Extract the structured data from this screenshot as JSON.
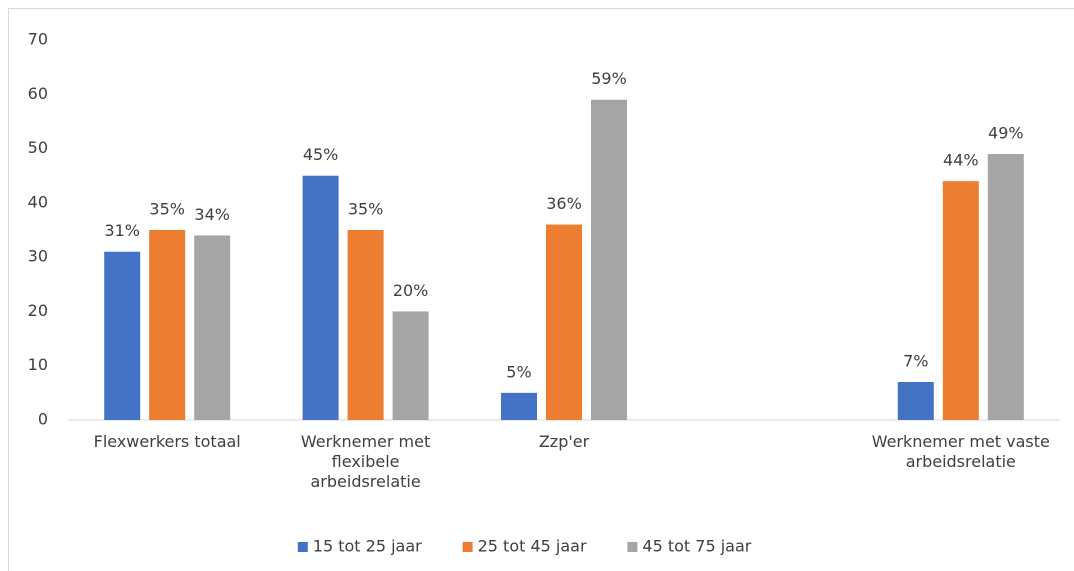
{
  "chart_data": {
    "type": "bar",
    "categories": [
      "Flexwerkers totaal",
      "Werknemer met flexibele arbeidsrelatie",
      "Zzp'er",
      null,
      "Werknemer met vaste arbeidsrelatie"
    ],
    "series": [
      {
        "name": "15 tot 25 jaar",
        "color": "#4472c4",
        "values": [
          31,
          45,
          5,
          null,
          7
        ],
        "value_labels": [
          "31%",
          "45%",
          "5%",
          null,
          "7%"
        ]
      },
      {
        "name": "25 tot 45 jaar",
        "color": "#ed7d31",
        "values": [
          35,
          35,
          36,
          null,
          44
        ],
        "value_labels": [
          "35%",
          "35%",
          "36%",
          null,
          "44%"
        ]
      },
      {
        "name": "45 tot 75 jaar",
        "color": "#a5a5a5",
        "values": [
          34,
          20,
          59,
          null,
          49
        ],
        "value_labels": [
          "34%",
          "20%",
          "59%",
          null,
          "49%"
        ]
      }
    ],
    "ylim": [
      0,
      70
    ],
    "yticks": [
      0,
      10,
      20,
      30,
      40,
      50,
      60,
      70
    ],
    "grid": false,
    "legend": "bottom"
  }
}
